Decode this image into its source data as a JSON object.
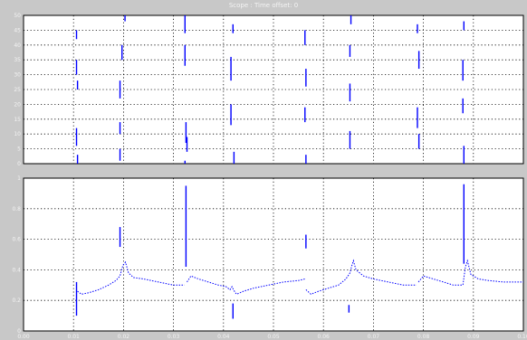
{
  "window": {
    "title": "Scope : Time offset: 0"
  },
  "colors": {
    "background": "#c8c8c8",
    "plot_bg": "#ffffff",
    "grid": "#000000",
    "trace": "#0000ff",
    "label": "#f4f4f4"
  },
  "chart_data": [
    {
      "type": "line",
      "grid": true,
      "xlim": [
        0,
        0.1
      ],
      "ylim": [
        0,
        50
      ],
      "yticks": [
        "0",
        "5",
        "10",
        "15",
        "20",
        "25",
        "30",
        "35",
        "40",
        "45",
        "50"
      ],
      "xticks": [],
      "segments": [
        {
          "x": 0.0106,
          "y": [
            12,
            6
          ]
        },
        {
          "x": 0.0106,
          "y": [
            45,
            42
          ]
        },
        {
          "x": 0.0106,
          "y": [
            35,
            30
          ]
        },
        {
          "x": 0.0108,
          "y": [
            28,
            25
          ]
        },
        {
          "x": 0.0108,
          "y": [
            3,
            0
          ]
        },
        {
          "x": 0.0193,
          "y": [
            5,
            1
          ]
        },
        {
          "x": 0.0193,
          "y": [
            14,
            10
          ]
        },
        {
          "x": 0.0197,
          "y": [
            40,
            35
          ]
        },
        {
          "x": 0.0193,
          "y": [
            28,
            22
          ]
        },
        {
          "x": 0.0203,
          "y": [
            50,
            48
          ]
        },
        {
          "x": 0.0325,
          "y": [
            14,
            7
          ]
        },
        {
          "x": 0.0323,
          "y": [
            50,
            44
          ]
        },
        {
          "x": 0.0323,
          "y": [
            40,
            33
          ]
        },
        {
          "x": 0.0327,
          "y": [
            9,
            4
          ]
        },
        {
          "x": 0.0323,
          "y": [
            1,
            0
          ]
        },
        {
          "x": 0.0415,
          "y": [
            20,
            13
          ]
        },
        {
          "x": 0.0415,
          "y": [
            36,
            28
          ]
        },
        {
          "x": 0.0419,
          "y": [
            47,
            44
          ]
        },
        {
          "x": 0.0421,
          "y": [
            4,
            0
          ]
        },
        {
          "x": 0.0563,
          "y": [
            19,
            14
          ]
        },
        {
          "x": 0.0563,
          "y": [
            45,
            40
          ]
        },
        {
          "x": 0.0565,
          "y": [
            32,
            26
          ]
        },
        {
          "x": 0.0565,
          "y": [
            3,
            0
          ]
        },
        {
          "x": 0.0653,
          "y": [
            11,
            5
          ]
        },
        {
          "x": 0.0653,
          "y": [
            40,
            36
          ]
        },
        {
          "x": 0.0655,
          "y": [
            50,
            47
          ]
        },
        {
          "x": 0.0653,
          "y": [
            27,
            21
          ]
        },
        {
          "x": 0.0788,
          "y": [
            19,
            12
          ]
        },
        {
          "x": 0.0788,
          "y": [
            47,
            44
          ]
        },
        {
          "x": 0.0791,
          "y": [
            38,
            32
          ]
        },
        {
          "x": 0.0791,
          "y": [
            10,
            5
          ]
        },
        {
          "x": 0.0879,
          "y": [
            22,
            17
          ]
        },
        {
          "x": 0.0879,
          "y": [
            35,
            28
          ]
        },
        {
          "x": 0.0881,
          "y": [
            48,
            45
          ]
        },
        {
          "x": 0.0881,
          "y": [
            6,
            0
          ]
        }
      ]
    },
    {
      "type": "line",
      "grid": true,
      "xlim": [
        0,
        0.1
      ],
      "ylim": [
        0,
        1
      ],
      "xticks": [
        "0.00",
        "0.01",
        "0.02",
        "0.03",
        "0.04",
        "0.05",
        "0.06",
        "0.07",
        "0.08",
        "0.09",
        "0.10"
      ],
      "yticks": [
        "0",
        "0.2",
        "0.4",
        "0.6",
        "0.8",
        "1"
      ],
      "segments": [
        {
          "x": 0.0106,
          "y": [
            0.32,
            0.1
          ]
        },
        {
          "x": 0.0193,
          "y": [
            0.68,
            0.55
          ]
        },
        {
          "x": 0.0325,
          "y": [
            0.95,
            0.42
          ]
        },
        {
          "x": 0.0419,
          "y": [
            0.18,
            0.08
          ]
        },
        {
          "x": 0.0565,
          "y": [
            0.63,
            0.54
          ]
        },
        {
          "x": 0.0651,
          "y": [
            0.17,
            0.12
          ]
        },
        {
          "x": 0.0881,
          "y": [
            0.96,
            0.44
          ]
        }
      ],
      "curves": [
        {
          "x": [
            0.0108,
            0.0116,
            0.013,
            0.015,
            0.017,
            0.0185,
            0.0193,
            0.0199,
            0.0204,
            0.021,
            0.022,
            0.024,
            0.027,
            0.03,
            0.0322
          ],
          "y": [
            0.26,
            0.24,
            0.25,
            0.27,
            0.3,
            0.33,
            0.36,
            0.43,
            0.45,
            0.38,
            0.35,
            0.34,
            0.32,
            0.3,
            0.3
          ]
        },
        {
          "x": 0.0,
          "y": 0.0
        },
        {
          "x": [
            0.0327,
            0.0335,
            0.035,
            0.037,
            0.039,
            0.0405,
            0.0413,
            0.0417,
            0.042,
            0.0426,
            0.044,
            0.046,
            0.049,
            0.052,
            0.055,
            0.0563
          ],
          "y": [
            0.32,
            0.36,
            0.34,
            0.32,
            0.3,
            0.29,
            0.27,
            0.29,
            0.27,
            0.24,
            0.26,
            0.28,
            0.3,
            0.32,
            0.33,
            0.34
          ]
        },
        {
          "x": [
            0.0565,
            0.0575,
            0.059,
            0.061,
            0.063,
            0.0645,
            0.0653,
            0.0657,
            0.066,
            0.0665,
            0.068,
            0.07,
            0.073,
            0.076,
            0.0786
          ],
          "y": [
            0.27,
            0.24,
            0.26,
            0.28,
            0.3,
            0.34,
            0.38,
            0.43,
            0.46,
            0.4,
            0.36,
            0.34,
            0.32,
            0.3,
            0.3
          ]
        },
        {
          "x": [
            0.079,
            0.08,
            0.082,
            0.084,
            0.086,
            0.0872,
            0.0879,
            0.0884,
            0.0888,
            0.0895,
            0.091,
            0.093,
            0.096,
            0.1
          ],
          "y": [
            0.32,
            0.36,
            0.34,
            0.32,
            0.3,
            0.3,
            0.3,
            0.42,
            0.46,
            0.37,
            0.34,
            0.33,
            0.32,
            0.32
          ]
        }
      ]
    }
  ]
}
